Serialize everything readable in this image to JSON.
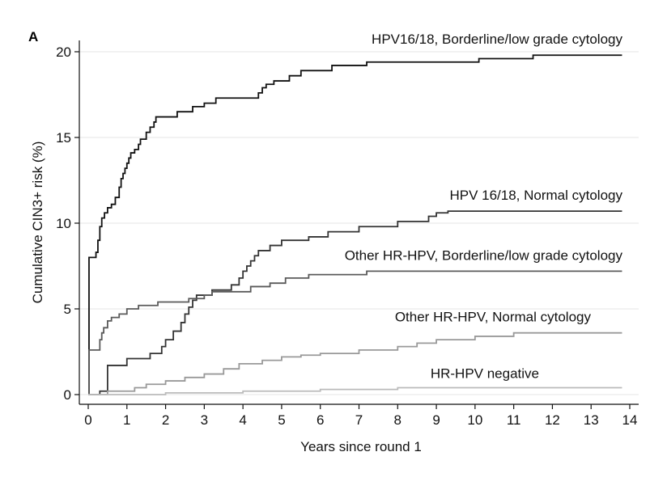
{
  "panel_label": "A",
  "chart_data": {
    "type": "line",
    "title": "",
    "xlabel": "Years since round 1",
    "ylabel": "Cumulative CIN3+ risk (%)",
    "xlim": [
      0,
      14
    ],
    "ylim": [
      0,
      20
    ],
    "x_ticks": [
      0,
      1,
      2,
      3,
      4,
      5,
      6,
      7,
      8,
      9,
      10,
      11,
      12,
      13,
      14
    ],
    "y_ticks": [
      0,
      5,
      10,
      15,
      20
    ],
    "grid": "horizontal",
    "step": true,
    "series": [
      {
        "name": "HPV16/18, Borderline/low grade cytology",
        "color": "#111111",
        "points": [
          [
            0,
            0
          ],
          [
            0.02,
            8.0
          ],
          [
            0.2,
            8.3
          ],
          [
            0.25,
            9.0
          ],
          [
            0.3,
            9.8
          ],
          [
            0.35,
            10.3
          ],
          [
            0.42,
            10.6
          ],
          [
            0.5,
            10.9
          ],
          [
            0.6,
            11.1
          ],
          [
            0.7,
            11.5
          ],
          [
            0.8,
            12.1
          ],
          [
            0.85,
            12.6
          ],
          [
            0.9,
            12.9
          ],
          [
            0.95,
            13.2
          ],
          [
            1.0,
            13.5
          ],
          [
            1.05,
            13.8
          ],
          [
            1.1,
            14.1
          ],
          [
            1.2,
            14.3
          ],
          [
            1.3,
            14.6
          ],
          [
            1.35,
            14.9
          ],
          [
            1.5,
            15.3
          ],
          [
            1.6,
            15.6
          ],
          [
            1.7,
            15.9
          ],
          [
            1.75,
            16.2
          ],
          [
            2.3,
            16.5
          ],
          [
            2.7,
            16.8
          ],
          [
            3.0,
            17.0
          ],
          [
            3.3,
            17.3
          ],
          [
            4.4,
            17.6
          ],
          [
            4.5,
            17.9
          ],
          [
            4.6,
            18.1
          ],
          [
            4.8,
            18.3
          ],
          [
            5.2,
            18.6
          ],
          [
            5.5,
            18.9
          ],
          [
            6.3,
            19.2
          ],
          [
            7.2,
            19.4
          ],
          [
            10.1,
            19.6
          ],
          [
            11.5,
            19.8
          ],
          [
            13.8,
            19.8
          ]
        ],
        "label_pos": "upper-right"
      },
      {
        "name": "HPV 16/18, Normal cytology",
        "color": "#333333",
        "points": [
          [
            0,
            0
          ],
          [
            0.3,
            0.2
          ],
          [
            0.5,
            1.7
          ],
          [
            1.0,
            2.1
          ],
          [
            1.6,
            2.4
          ],
          [
            1.9,
            2.8
          ],
          [
            2.0,
            3.2
          ],
          [
            2.2,
            3.7
          ],
          [
            2.4,
            4.2
          ],
          [
            2.5,
            4.7
          ],
          [
            2.6,
            5.1
          ],
          [
            2.7,
            5.5
          ],
          [
            2.8,
            5.8
          ],
          [
            3.2,
            6.1
          ],
          [
            3.7,
            6.4
          ],
          [
            3.9,
            6.8
          ],
          [
            4.0,
            7.2
          ],
          [
            4.1,
            7.5
          ],
          [
            4.2,
            7.8
          ],
          [
            4.3,
            8.1
          ],
          [
            4.4,
            8.4
          ],
          [
            4.7,
            8.7
          ],
          [
            5.0,
            9.0
          ],
          [
            5.7,
            9.2
          ],
          [
            6.2,
            9.5
          ],
          [
            7.0,
            9.8
          ],
          [
            8.0,
            10.1
          ],
          [
            8.8,
            10.4
          ],
          [
            9.0,
            10.6
          ],
          [
            9.3,
            10.7
          ],
          [
            13.8,
            10.7
          ]
        ],
        "label_pos": "middle-right"
      },
      {
        "name": "Other HR-HPV, Borderline/low grade cytology",
        "color": "#5a5a5a",
        "points": [
          [
            0,
            0
          ],
          [
            0.02,
            2.6
          ],
          [
            0.3,
            3.2
          ],
          [
            0.35,
            3.6
          ],
          [
            0.4,
            3.9
          ],
          [
            0.5,
            4.3
          ],
          [
            0.6,
            4.5
          ],
          [
            0.8,
            4.7
          ],
          [
            1.0,
            5.0
          ],
          [
            1.3,
            5.2
          ],
          [
            1.8,
            5.4
          ],
          [
            2.6,
            5.6
          ],
          [
            3.0,
            5.8
          ],
          [
            3.2,
            6.0
          ],
          [
            4.2,
            6.3
          ],
          [
            4.7,
            6.5
          ],
          [
            5.1,
            6.8
          ],
          [
            5.7,
            7.0
          ],
          [
            7.2,
            7.2
          ],
          [
            13.8,
            7.2
          ]
        ],
        "label_pos": "middle-right"
      },
      {
        "name": "Other HR-HPV, Normal cytology",
        "color": "#999999",
        "points": [
          [
            0,
            0
          ],
          [
            0.5,
            0.2
          ],
          [
            1.2,
            0.4
          ],
          [
            1.5,
            0.6
          ],
          [
            2.0,
            0.8
          ],
          [
            2.5,
            1.0
          ],
          [
            3.0,
            1.2
          ],
          [
            3.5,
            1.5
          ],
          [
            3.9,
            1.8
          ],
          [
            4.5,
            2.0
          ],
          [
            5.0,
            2.2
          ],
          [
            5.5,
            2.3
          ],
          [
            6.0,
            2.4
          ],
          [
            7.0,
            2.6
          ],
          [
            8.0,
            2.8
          ],
          [
            8.5,
            3.0
          ],
          [
            9.0,
            3.2
          ],
          [
            10.0,
            3.4
          ],
          [
            11.0,
            3.6
          ],
          [
            13.8,
            3.6
          ]
        ],
        "label_pos": "lower-right"
      },
      {
        "name": "HR-HPV negative",
        "color": "#bbbbbb",
        "points": [
          [
            0,
            0
          ],
          [
            2.0,
            0.1
          ],
          [
            4.0,
            0.2
          ],
          [
            6.0,
            0.3
          ],
          [
            8.0,
            0.4
          ],
          [
            13.8,
            0.4
          ]
        ],
        "label_pos": "bottom-right"
      }
    ]
  }
}
